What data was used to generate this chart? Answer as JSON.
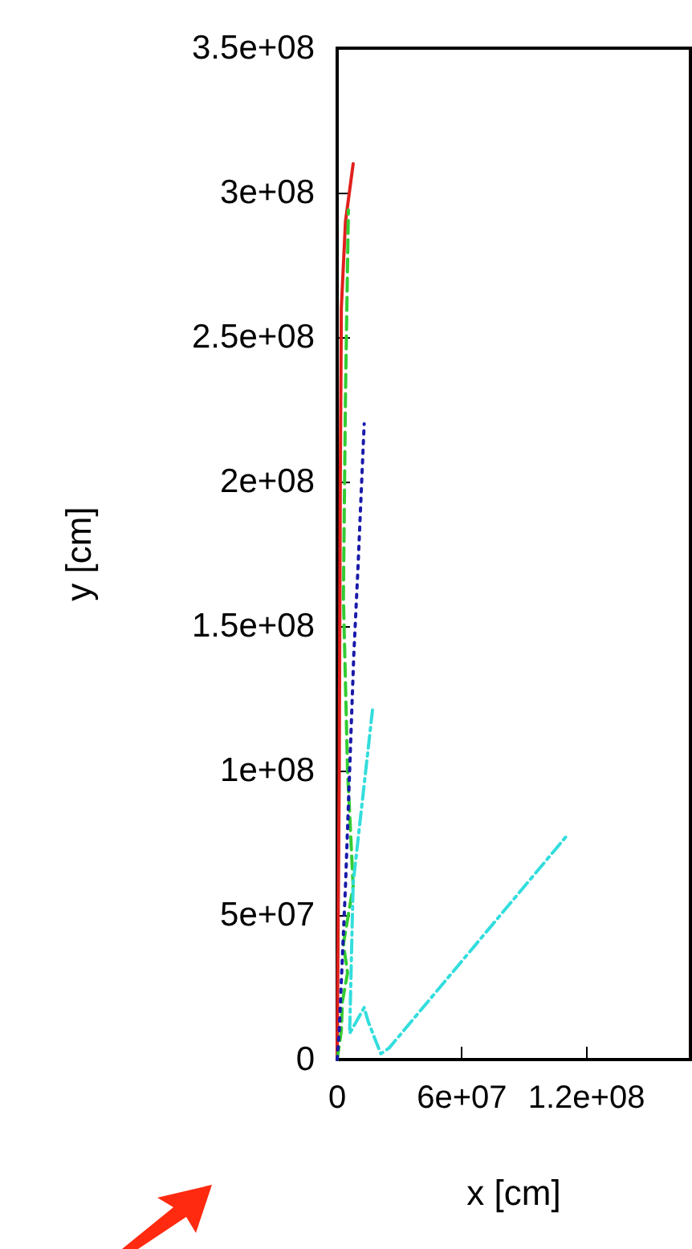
{
  "chart_data": {
    "type": "line",
    "xlabel": "x [cm]",
    "ylabel": "y [cm]",
    "xlim": [
      0,
      170000000
    ],
    "xticks": [
      {
        "value": 0,
        "label": "0"
      },
      {
        "value": 60000000,
        "label": "6e+07"
      },
      {
        "value": 120000000,
        "label": "1.2e+08"
      }
    ],
    "ylim": [
      0,
      350000000
    ],
    "yticks": [
      {
        "value": 0,
        "label": "0"
      },
      {
        "value": 50000000,
        "label": "5e+07"
      },
      {
        "value": 100000000,
        "label": "1e+08"
      },
      {
        "value": 150000000,
        "label": "1.5e+08"
      },
      {
        "value": 200000000,
        "label": "2e+08"
      },
      {
        "value": 250000000,
        "label": "2.5e+08"
      },
      {
        "value": 300000000,
        "label": "3e+08"
      },
      {
        "value": 350000000,
        "label": "3.5e+08"
      }
    ],
    "grid": false,
    "marker": "none",
    "series": [
      {
        "color": "#e0201c",
        "line_style": "solid",
        "x": [
          0,
          1000000,
          1500000,
          2000000,
          4000000,
          7700000
        ],
        "values": [
          0,
          100000000,
          200000000,
          260000000,
          290000000,
          310000000
        ]
      },
      {
        "color": "#33cc33",
        "line_style": "dashed",
        "x": [
          0,
          2000000,
          2500000,
          5000000,
          3000000,
          7700000,
          5000000,
          3000000,
          4000000,
          5400000
        ],
        "values": [
          0,
          10000000,
          20000000,
          30000000,
          40000000,
          60000000,
          100000000,
          160000000,
          230000000,
          294000000
        ]
      },
      {
        "color": "#1a1aaa",
        "line_style": "dotted",
        "x": [
          0,
          1000000,
          2300000,
          4000000,
          6000000,
          8000000,
          10000000,
          13000000
        ],
        "values": [
          0,
          10000000,
          32000000,
          60000000,
          100000000,
          140000000,
          170000000,
          220000000
        ]
      },
      {
        "color": "#33dddd",
        "line_style": "dashdot",
        "x": [
          17000000,
          7700000,
          6000000,
          13000000,
          15000000,
          21000000,
          25000000,
          110000000
        ],
        "values": [
          121000000,
          61000000,
          9000000,
          18000000,
          13000000,
          2000000,
          4000000,
          77000000
        ]
      }
    ]
  }
}
